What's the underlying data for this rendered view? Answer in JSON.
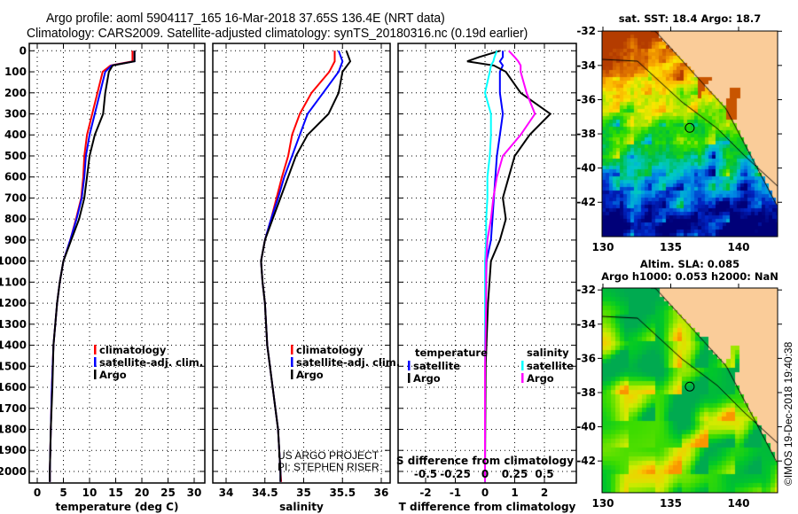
{
  "header": {
    "title_line1": "Argo profile: aoml 5904117_165 16-Mar-2018 37.65S 136.4E (NRT data)",
    "title_line2": "Climatology: CARS2009. Satellite-adjusted climatology: synTS_20180316.nc (0.19d earlier)"
  },
  "colors": {
    "climatology": "#ff0000",
    "satellite": "#0000ff",
    "argo": "#000000",
    "s_satellite": "#00ffff",
    "s_argo": "#ff00ff",
    "land": "#facc99"
  },
  "chart_data": [
    {
      "type": "line",
      "title": "",
      "xlabel": "temperature (deg C)",
      "ylabel": "",
      "xlim": [
        -1.5,
        32
      ],
      "ylim": [
        2055,
        -35
      ],
      "xticks": [
        0,
        5,
        10,
        15,
        20,
        25,
        30
      ],
      "yticks": [
        0,
        100,
        200,
        300,
        400,
        500,
        600,
        700,
        800,
        900,
        1000,
        1100,
        1200,
        1300,
        1400,
        1500,
        1600,
        1700,
        1800,
        1900,
        2000
      ],
      "grid": true,
      "legend": [
        "climatology",
        "satellite-adj. clim.",
        "Argo"
      ],
      "depth": [
        0,
        50,
        70,
        100,
        200,
        300,
        400,
        500,
        600,
        700,
        800,
        900,
        1000,
        1100,
        1200,
        1400,
        1600,
        1800,
        2000,
        2050
      ],
      "series": [
        {
          "name": "climatology",
          "values": [
            18.2,
            18.2,
            14.0,
            12.5,
            11.5,
            10.5,
            9.5,
            9.0,
            8.8,
            8.4,
            7.4,
            6.3,
            5.0,
            4.3,
            3.8,
            3.1,
            2.8,
            2.6,
            2.4,
            2.4
          ]
        },
        {
          "name": "satellite-adj. clim.",
          "values": [
            18.6,
            18.6,
            14.2,
            13.0,
            12.0,
            11.0,
            10.0,
            9.3,
            9.0,
            8.5,
            7.5,
            6.3,
            5.0,
            4.3,
            3.8,
            3.1,
            2.8,
            2.6,
            2.4,
            2.4
          ]
        },
        {
          "name": "Argo",
          "values": [
            18.6,
            18.6,
            14.4,
            13.7,
            13.0,
            12.6,
            11.0,
            10.0,
            9.5,
            9.0,
            8.0,
            6.5,
            5.0,
            4.3,
            3.8,
            3.1,
            2.9,
            2.6,
            2.4,
            2.4
          ]
        }
      ]
    },
    {
      "type": "line",
      "xlabel": "salinity",
      "xlim": [
        33.83,
        36.1
      ],
      "ylim": [
        2055,
        -35
      ],
      "xticks": [
        "34",
        "34.5",
        "35",
        "35.5",
        "36"
      ],
      "grid": true,
      "legend": [
        "climatology",
        "satellite-adj. clim.",
        "Argo"
      ],
      "annotation": [
        "US ARGO PROJECT",
        "PI: STEPHEN RISER"
      ],
      "depth": [
        0,
        50,
        100,
        200,
        300,
        400,
        500,
        600,
        700,
        800,
        900,
        1000,
        1100,
        1200,
        1400,
        1600,
        1800,
        2000,
        2050
      ],
      "series": [
        {
          "name": "climatology",
          "values": [
            35.4,
            35.4,
            35.33,
            35.1,
            34.95,
            34.85,
            34.8,
            34.72,
            34.65,
            34.58,
            34.5,
            34.45,
            34.47,
            34.5,
            34.53,
            34.6,
            34.67,
            34.7,
            34.71
          ]
        },
        {
          "name": "satellite-adj. clim.",
          "values": [
            35.45,
            35.5,
            35.45,
            35.25,
            35.05,
            34.95,
            34.85,
            34.75,
            34.67,
            34.58,
            34.5,
            34.45,
            34.47,
            34.5,
            34.53,
            34.6,
            34.67,
            34.7,
            34.7
          ]
        },
        {
          "name": "Argo",
          "values": [
            35.55,
            35.6,
            35.5,
            35.45,
            35.32,
            35.05,
            34.9,
            34.8,
            34.7,
            34.6,
            34.5,
            34.45,
            34.47,
            34.5,
            34.53,
            34.6,
            34.67,
            34.7,
            34.7
          ]
        }
      ]
    },
    {
      "type": "line",
      "xlabel": "T difference from climatology",
      "xlabel2": "S difference from climatology",
      "xlim": [
        -2.9,
        3.1
      ],
      "ylim": [
        2055,
        -35
      ],
      "xticks": [
        "-2",
        "-1",
        "0",
        "1",
        "2"
      ],
      "xticks2": [
        "-0.5",
        "-0.25",
        "0",
        "0.25",
        "0.5"
      ],
      "grid": true,
      "legend_temperature": {
        "title": "temperature",
        "items": [
          "satellite",
          "Argo"
        ]
      },
      "legend_salinity": {
        "title": "salinity",
        "items": [
          "satellite",
          "Argo"
        ]
      },
      "depth": [
        0,
        30,
        50,
        70,
        100,
        200,
        300,
        400,
        500,
        600,
        700,
        800,
        900,
        1000,
        1200,
        1500,
        2000,
        2050
      ],
      "series": [
        {
          "name": "T satellite",
          "values": [
            0.6,
            0.6,
            0.5,
            0.6,
            0.5,
            0.5,
            0.6,
            0.5,
            0.4,
            0.35,
            0.3,
            0.25,
            0.2,
            0.05,
            0.02,
            0,
            0,
            0
          ]
        },
        {
          "name": "T Argo",
          "values": [
            0.5,
            -0.2,
            -0.6,
            0.3,
            0.7,
            1.2,
            2.2,
            1.5,
            1.0,
            0.8,
            0.6,
            0.7,
            0.5,
            0.2,
            0.1,
            0.02,
            0,
            0
          ]
        },
        {
          "name": "S satellite",
          "values": [
            0.1,
            0.08,
            0.07,
            0.05,
            0.04,
            0.0,
            0.05,
            0.05,
            0.04,
            0.02,
            0.02,
            0.01,
            0.01,
            0,
            0,
            0,
            0,
            0
          ]
        },
        {
          "name": "S Argo",
          "values": [
            0.2,
            0.25,
            0.28,
            0.3,
            0.3,
            0.35,
            0.42,
            0.3,
            0.15,
            0.1,
            0.07,
            0.05,
            0.02,
            0.01,
            0.01,
            0,
            0,
            0
          ]
        }
      ]
    }
  ],
  "maps": [
    {
      "title": "sat. SST: 18.4 Argo: 18.7",
      "lon_ticks": [
        "130",
        "135",
        "140"
      ],
      "lat_ticks": [
        "-32",
        "-34",
        "-36",
        "-38",
        "-40",
        "-42"
      ],
      "field": "sst"
    },
    {
      "title": "Altim. SLA: 0.085",
      "subtitle": "Argo h1000: 0.053 h2000: NaN",
      "lon_ticks": [
        "130",
        "135",
        "140"
      ],
      "lat_ticks": [
        "-32",
        "-34",
        "-36",
        "-38",
        "-40",
        "-42"
      ],
      "field": "sla"
    }
  ],
  "float_position": {
    "lat": -37.65,
    "lon": 136.4
  },
  "watermark": "©IMOS 19-Dec-2018 19:40:38"
}
